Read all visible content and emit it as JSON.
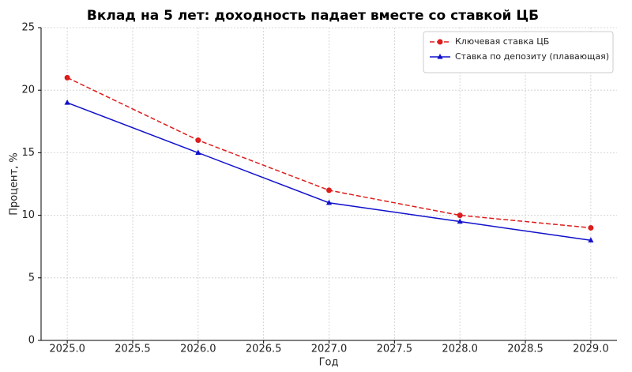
{
  "chart_data": {
    "type": "line",
    "title": "Вклад на 5 лет: доходность падает вместе со ставкой ЦБ",
    "x_label": "Год",
    "y_label": "Процент, %",
    "x": [
      2025,
      2026,
      2027,
      2028,
      2029
    ],
    "series": [
      {
        "name": "Ключевая ставка ЦБ",
        "color": "#dd1c1c",
        "linestyle": "dashed",
        "marker": "circle",
        "values": [
          21,
          16,
          12,
          10,
          9
        ]
      },
      {
        "name": "Ставка по депозиту (плавающая)",
        "color": "#1010cc",
        "linestyle": "solid",
        "marker": "triangle",
        "values": [
          19,
          15,
          11,
          9.5,
          8
        ]
      }
    ],
    "xlim": [
      2024.8,
      2029.2
    ],
    "xticks": [
      {
        "value": 2025,
        "label": "2025.0"
      },
      {
        "value": 2025.5,
        "label": "2025.5"
      },
      {
        "value": 2026,
        "label": "2026.0"
      },
      {
        "value": 2026.5,
        "label": "2026.5"
      },
      {
        "value": 2027,
        "label": "2027.0"
      },
      {
        "value": 2027.5,
        "label": "2027.5"
      },
      {
        "value": 2028,
        "label": "2028.0"
      },
      {
        "value": 2028.5,
        "label": "2028.5"
      },
      {
        "value": 2029,
        "label": "2029.0"
      }
    ],
    "ylim": [
      0,
      25
    ],
    "yticks": [
      0,
      5,
      10,
      15,
      20,
      25
    ],
    "grid": true,
    "legend": "upper right"
  }
}
